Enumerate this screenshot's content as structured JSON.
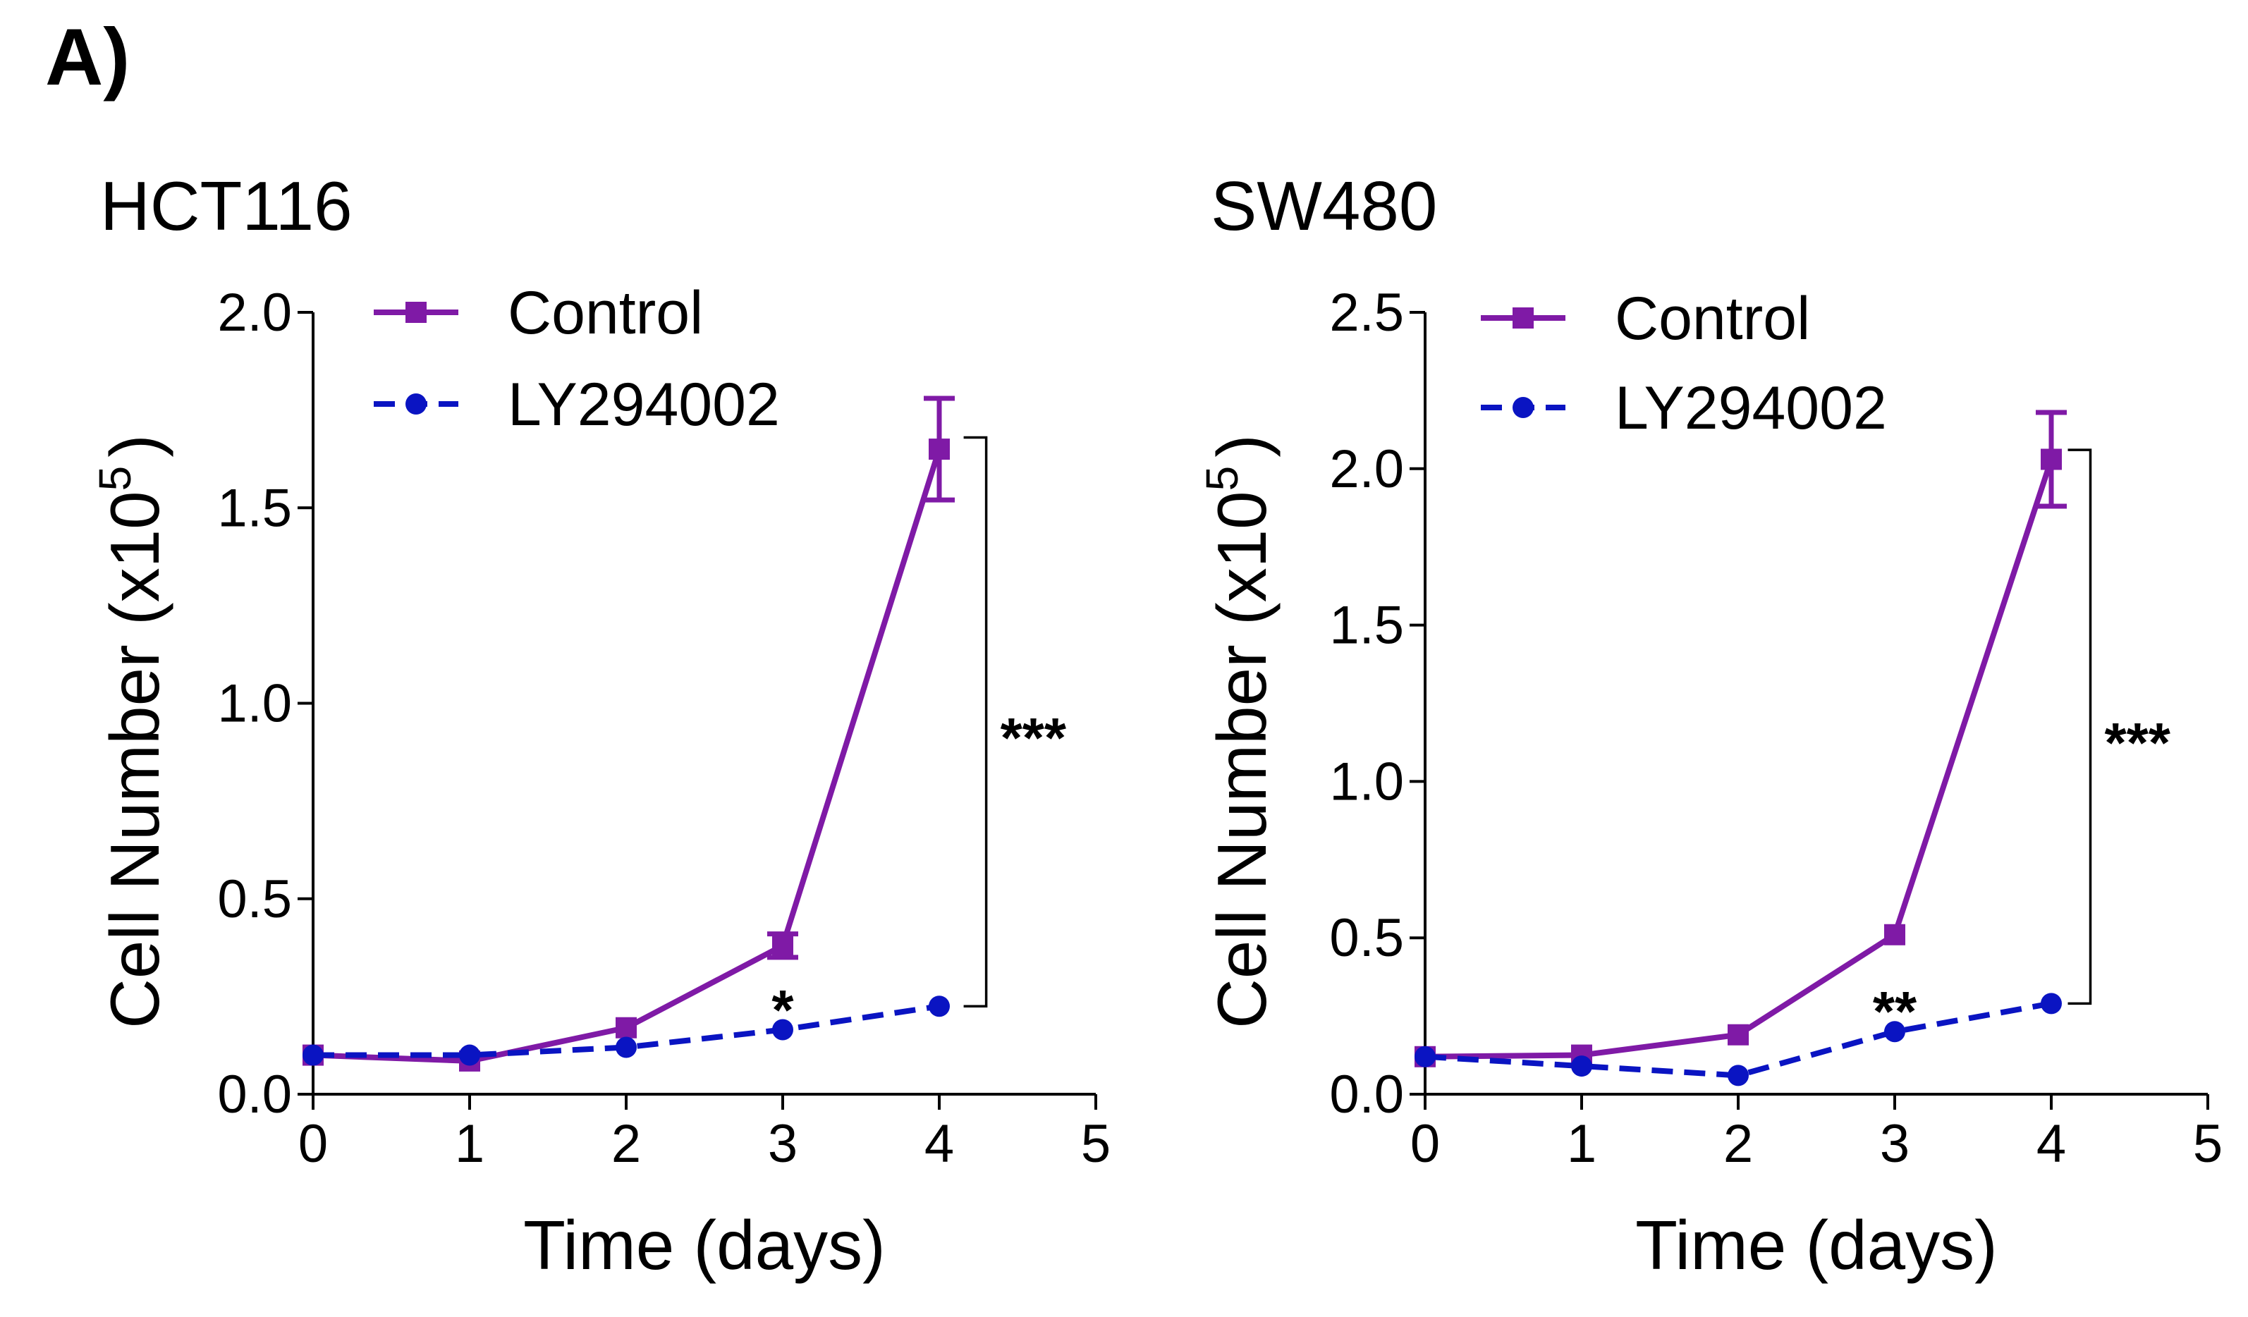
{
  "figure": {
    "panel_label": "A)"
  },
  "colors": {
    "control": "#7f1aa6",
    "ly294002": "#0a14c2",
    "axis": "#000000"
  },
  "chart_data": [
    {
      "type": "line",
      "title": "HCT116",
      "xlabel": "Time (days)",
      "ylabel_main": "Cell Number (x10",
      "ylabel_sup": "5",
      "ylabel_close": ")",
      "xlim": [
        0,
        5
      ],
      "ylim": [
        0,
        2.0
      ],
      "xticks": [
        "0",
        "1",
        "2",
        "3",
        "4",
        "5"
      ],
      "yticks": [
        "0.0",
        "0.5",
        "1.0",
        "1.5",
        "2.0"
      ],
      "x": [
        0,
        1,
        2,
        3,
        4
      ],
      "series": [
        {
          "name": "Control",
          "marker": "square",
          "dash": false,
          "values": [
            0.1,
            0.085,
            0.17,
            0.38,
            1.65
          ],
          "err": [
            0,
            0,
            0,
            0.03,
            0.13
          ]
        },
        {
          "name": "LY294002",
          "marker": "circle",
          "dash": true,
          "values": [
            0.1,
            0.1,
            0.12,
            0.165,
            0.225
          ],
          "err": [
            0,
            0,
            0,
            0,
            0
          ]
        }
      ],
      "annotations": [
        {
          "text": "*",
          "x": 3,
          "y": 0.22
        },
        {
          "text": "***",
          "bracket_x": 4.3,
          "from": 0.225,
          "to": 1.68
        }
      ]
    },
    {
      "type": "line",
      "title": "SW480",
      "xlabel": "Time (days)",
      "ylabel_main": "Cell Number (x10",
      "ylabel_sup": "5",
      "ylabel_close": ")",
      "xlim": [
        0,
        5
      ],
      "ylim": [
        0,
        2.5
      ],
      "xticks": [
        "0",
        "1",
        "2",
        "3",
        "4",
        "5"
      ],
      "yticks": [
        "0.0",
        "0.5",
        "1.0",
        "1.5",
        "2.0",
        "2.5"
      ],
      "x": [
        0,
        1,
        2,
        3,
        4
      ],
      "series": [
        {
          "name": "Control",
          "marker": "square",
          "dash": false,
          "values": [
            0.12,
            0.125,
            0.19,
            0.51,
            2.03
          ],
          "err": [
            0,
            0,
            0,
            0,
            0.15
          ]
        },
        {
          "name": "LY294002",
          "marker": "circle",
          "dash": true,
          "values": [
            0.12,
            0.09,
            0.06,
            0.2,
            0.29
          ],
          "err": [
            0,
            0,
            0,
            0,
            0
          ]
        }
      ],
      "annotations": [
        {
          "text": "**",
          "x": 3,
          "y": 0.27
        },
        {
          "text": "***",
          "bracket_x": 4.25,
          "from": 0.29,
          "to": 2.06
        }
      ]
    }
  ]
}
